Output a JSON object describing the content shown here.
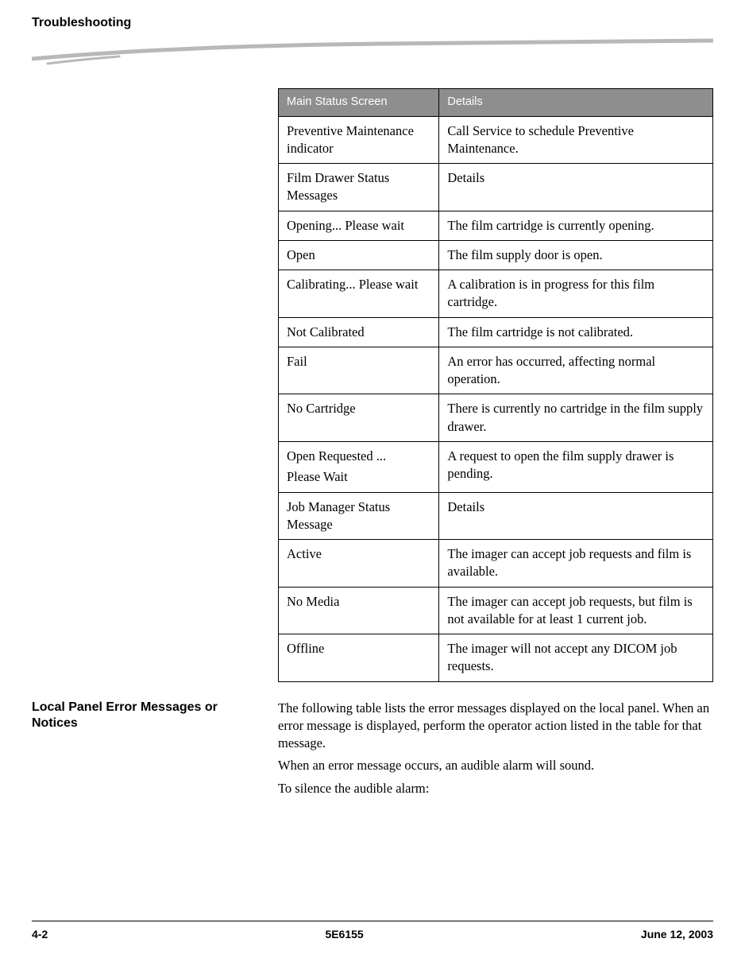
{
  "header": {
    "title": "Troubleshooting"
  },
  "swoosh": {
    "stroke_color": "#b8b8b8",
    "bg_color": "#ffffff"
  },
  "table": {
    "header": {
      "left": "Main Status Screen",
      "right": "Details"
    },
    "rows": [
      {
        "type": "data",
        "left": "Preventive Maintenance indicator",
        "right": "Call Service to schedule Preventive Maintenance."
      },
      {
        "type": "subheader",
        "left": "Film Drawer Status Messages",
        "right": "Details"
      },
      {
        "type": "data",
        "left": "Opening... Please wait",
        "right": "The film cartridge is currently opening."
      },
      {
        "type": "data",
        "left": "Open",
        "right": "The film supply door is open."
      },
      {
        "type": "data",
        "left": "Calibrating... Please wait",
        "right": "A calibration is in progress for this film cartridge."
      },
      {
        "type": "data",
        "left": "Not Calibrated",
        "right": "The film cartridge is not calibrated."
      },
      {
        "type": "data",
        "left": "Fail",
        "right": "An error has occurred, affecting normal operation."
      },
      {
        "type": "data",
        "left": "No Cartridge",
        "right": "There is currently no cartridge in the film supply drawer."
      },
      {
        "type": "data-multi",
        "left": [
          "Open Requested ...",
          "Please Wait"
        ],
        "right": "A request to open the film supply drawer is pending."
      },
      {
        "type": "subheader",
        "left": "Job Manager Status Message",
        "right": "Details"
      },
      {
        "type": "data",
        "left": "Active",
        "right": "The imager can accept job requests and film is available."
      },
      {
        "type": "data",
        "left": "No Media",
        "right": "The imager can accept job requests, but film is not available for at least 1 current job."
      },
      {
        "type": "data",
        "left": "Offline",
        "right": "The imager will not accept any DICOM job requests."
      }
    ]
  },
  "section": {
    "heading": "Local Panel Error Messages or Notices",
    "paragraphs": [
      "The following table lists the error messages displayed on the local panel. When an error message is displayed, perform the operator action listed in the table for that message.",
      "When an error message occurs, an audible alarm will sound.",
      "To silence the audible alarm:"
    ]
  },
  "footer": {
    "left": "4-2",
    "center": "5E6155",
    "right": "June 12, 2003"
  }
}
